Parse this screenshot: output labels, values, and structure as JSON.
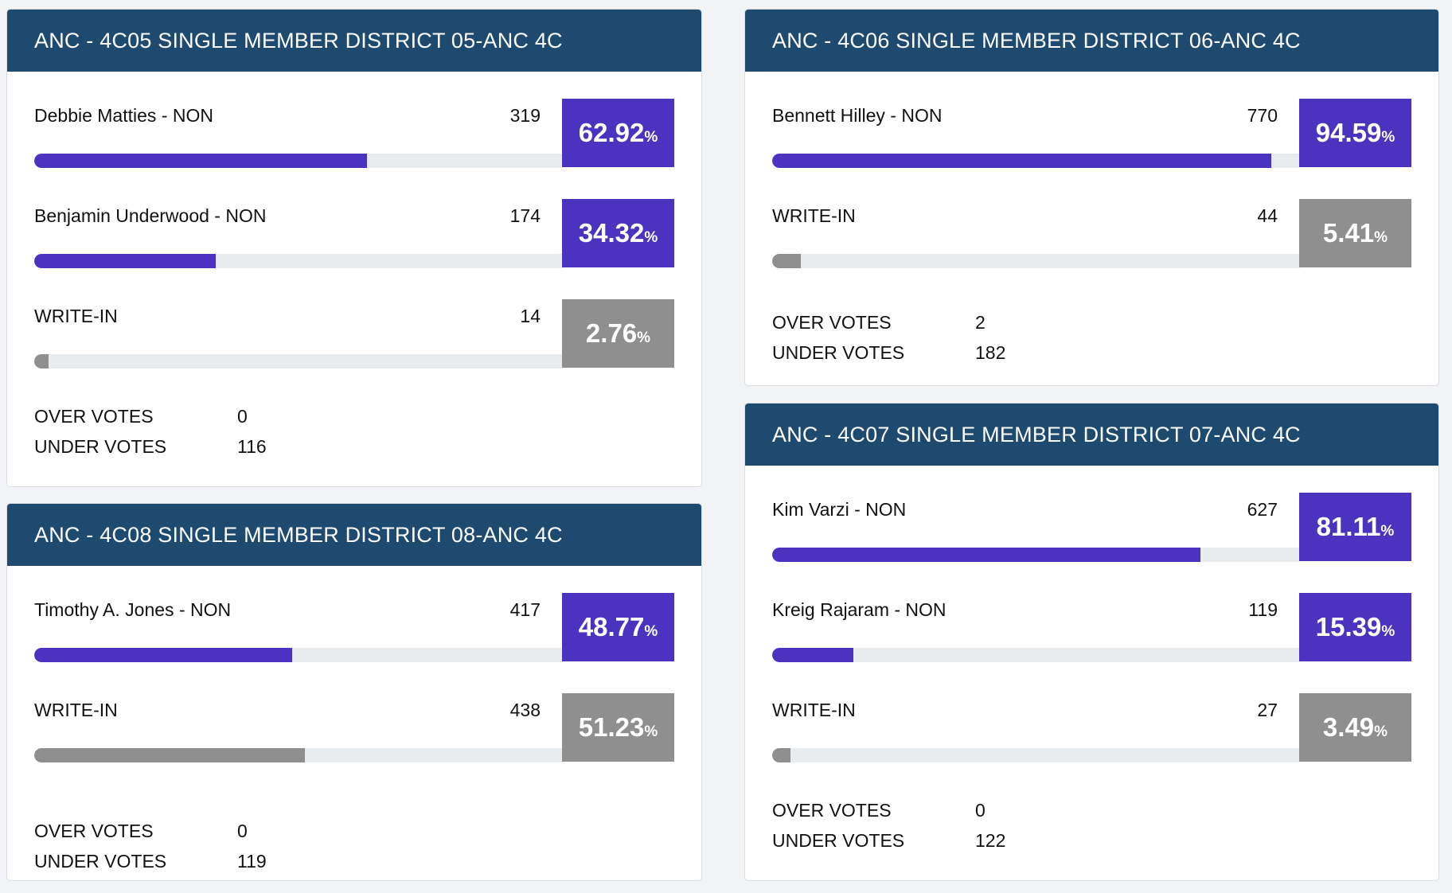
{
  "colors": {
    "header": "#1e4a70",
    "leader": "#4b33c0",
    "other": "#8f8f8f",
    "track": "#e9ecef"
  },
  "cards": [
    {
      "title": "ANC - 4C05 SINGLE MEMBER DISTRICT 05-ANC 4C",
      "candidates": [
        {
          "name": "Debbie Matties - NON",
          "votes": "319",
          "pct": "62.92",
          "pct_sign": "%",
          "fraction": 0.6292,
          "highlight": true
        },
        {
          "name": "Benjamin Underwood - NON",
          "votes": "174",
          "pct": "34.32",
          "pct_sign": "%",
          "fraction": 0.3432,
          "highlight": true
        },
        {
          "name": "WRITE-IN",
          "votes": "14",
          "pct": "2.76",
          "pct_sign": "%",
          "fraction": 0.0276,
          "highlight": false
        }
      ],
      "over_label": "OVER VOTES",
      "over_value": "0",
      "under_label": "UNDER VOTES",
      "under_value": "116"
    },
    {
      "title": "ANC - 4C06 SINGLE MEMBER DISTRICT 06-ANC 4C",
      "candidates": [
        {
          "name": "Bennett Hilley - NON",
          "votes": "770",
          "pct": "94.59",
          "pct_sign": "%",
          "fraction": 0.9459,
          "highlight": true
        },
        {
          "name": "WRITE-IN",
          "votes": "44",
          "pct": "5.41",
          "pct_sign": "%",
          "fraction": 0.0541,
          "highlight": false
        }
      ],
      "over_label": "OVER VOTES",
      "over_value": "2",
      "under_label": "UNDER VOTES",
      "under_value": "182"
    },
    {
      "title": "ANC - 4C07 SINGLE MEMBER DISTRICT 07-ANC 4C",
      "candidates": [
        {
          "name": "Kim Varzi - NON",
          "votes": "627",
          "pct": "81.11",
          "pct_sign": "%",
          "fraction": 0.8111,
          "highlight": true
        },
        {
          "name": "Kreig Rajaram - NON",
          "votes": "119",
          "pct": "15.39",
          "pct_sign": "%",
          "fraction": 0.1539,
          "highlight": true
        },
        {
          "name": "WRITE-IN",
          "votes": "27",
          "pct": "3.49",
          "pct_sign": "%",
          "fraction": 0.0349,
          "highlight": false
        }
      ],
      "over_label": "OVER VOTES",
      "over_value": "0",
      "under_label": "UNDER VOTES",
      "under_value": "122"
    },
    {
      "title": "ANC - 4C08 SINGLE MEMBER DISTRICT 08-ANC 4C",
      "candidates": [
        {
          "name": "Timothy A. Jones - NON",
          "votes": "417",
          "pct": "48.77",
          "pct_sign": "%",
          "fraction": 0.4877,
          "highlight": true
        },
        {
          "name": "WRITE-IN",
          "votes": "438",
          "pct": "51.23",
          "pct_sign": "%",
          "fraction": 0.5123,
          "highlight": false
        }
      ],
      "over_label": "OVER VOTES",
      "over_value": "0",
      "under_label": "UNDER VOTES",
      "under_value": "119"
    }
  ]
}
